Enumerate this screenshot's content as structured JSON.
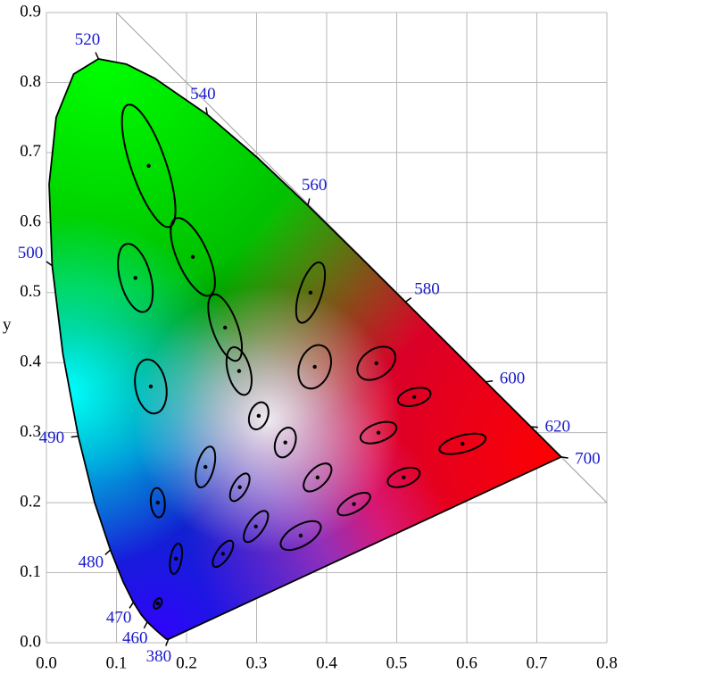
{
  "chart_data": {
    "type": "ellipse",
    "ylabel": "y",
    "xlim": [
      0,
      0.8
    ],
    "ylim": [
      0,
      0.9
    ],
    "xticks": [
      {
        "value": 0,
        "label": "0.0"
      },
      {
        "value": 0.1,
        "label": "0.1"
      },
      {
        "value": 0.2,
        "label": "0.2"
      },
      {
        "value": 0.3,
        "label": "0.3"
      },
      {
        "value": 0.4,
        "label": "0.4"
      },
      {
        "value": 0.5,
        "label": "0.5"
      },
      {
        "value": 0.6,
        "label": "0.6"
      },
      {
        "value": 0.7,
        "label": "0.7"
      },
      {
        "value": 0.8,
        "label": "0.8"
      }
    ],
    "yticks": [
      {
        "value": 0,
        "label": "0.0"
      },
      {
        "value": 0.1,
        "label": "0.1"
      },
      {
        "value": 0.2,
        "label": "0.2"
      },
      {
        "value": 0.3,
        "label": "0.3"
      },
      {
        "value": 0.4,
        "label": "0.4"
      },
      {
        "value": 0.5,
        "label": "0.5"
      },
      {
        "value": 0.6,
        "label": "0.6"
      },
      {
        "value": 0.7,
        "label": "0.7"
      },
      {
        "value": 0.8,
        "label": "0.8"
      },
      {
        "value": 0.9,
        "label": "0.9"
      }
    ],
    "grid": true,
    "locus": {
      "x": [
        0.1741,
        0.1714,
        0.1644,
        0.1566,
        0.144,
        0.1355,
        0.1241,
        0.1096,
        0.0913,
        0.0687,
        0.0454,
        0.0235,
        0.0082,
        0.0039,
        0.0139,
        0.0389,
        0.0743,
        0.1142,
        0.1547,
        0.2296,
        0.3016,
        0.3731,
        0.4441,
        0.5125,
        0.5752,
        0.627,
        0.6658,
        0.6915,
        0.719,
        0.7347
      ],
      "y": [
        0.005,
        0.0051,
        0.0109,
        0.0177,
        0.0297,
        0.0399,
        0.0578,
        0.0868,
        0.1327,
        0.2007,
        0.295,
        0.4127,
        0.5384,
        0.6548,
        0.7502,
        0.812,
        0.8338,
        0.8262,
        0.8059,
        0.7543,
        0.6923,
        0.6245,
        0.5547,
        0.4866,
        0.4242,
        0.3725,
        0.334,
        0.3083,
        0.2809,
        0.2653
      ]
    },
    "reference_line": {
      "x": [
        0.1,
        0.8
      ],
      "y": [
        0.9,
        0.2
      ]
    },
    "wavelength_labels": {
      "values": [
        380,
        460,
        470,
        480,
        490,
        500,
        520,
        540,
        560,
        580,
        600,
        620,
        700
      ],
      "x": [
        0.1741,
        0.144,
        0.1241,
        0.0913,
        0.0454,
        0.0082,
        0.0743,
        0.2296,
        0.3731,
        0.5125,
        0.627,
        0.6915,
        0.7347
      ],
      "y": [
        0.005,
        0.0297,
        0.0578,
        0.1327,
        0.295,
        0.5384,
        0.8338,
        0.7543,
        0.6245,
        0.4866,
        0.3725,
        0.3083,
        0.2653
      ],
      "color": "#1a1acc"
    },
    "ellipses": {
      "x": [
        0.146,
        0.209,
        0.127,
        0.255,
        0.149,
        0.275,
        0.377,
        0.383,
        0.471,
        0.303,
        0.341,
        0.227,
        0.276,
        0.387,
        0.474,
        0.525,
        0.594,
        0.51,
        0.439,
        0.363,
        0.299,
        0.252,
        0.185,
        0.159,
        0.159
      ],
      "y": [
        0.681,
        0.551,
        0.521,
        0.45,
        0.366,
        0.388,
        0.5,
        0.394,
        0.399,
        0.324,
        0.286,
        0.251,
        0.222,
        0.236,
        0.3,
        0.351,
        0.284,
        0.236,
        0.198,
        0.153,
        0.166,
        0.127,
        0.12,
        0.2,
        0.056
      ],
      "a": [
        0.092,
        0.06,
        0.05,
        0.05,
        0.039,
        0.035,
        0.045,
        0.032,
        0.03,
        0.02,
        0.022,
        0.03,
        0.022,
        0.025,
        0.027,
        0.024,
        0.034,
        0.024,
        0.026,
        0.032,
        0.026,
        0.022,
        0.022,
        0.021,
        0.008
      ],
      "b": [
        0.025,
        0.022,
        0.022,
        0.018,
        0.022,
        0.016,
        0.016,
        0.022,
        0.02,
        0.013,
        0.014,
        0.012,
        0.01,
        0.013,
        0.013,
        0.012,
        0.012,
        0.012,
        0.011,
        0.015,
        0.011,
        0.009,
        0.008,
        0.01,
        0.005
      ],
      "angle": [
        109,
        114,
        105,
        110,
        100,
        105,
        72,
        70,
        35,
        70,
        70,
        75,
        60,
        45,
        20,
        15,
        15,
        20,
        30,
        30,
        55,
        55,
        80,
        95,
        60
      ],
      "color": "#000000"
    }
  }
}
